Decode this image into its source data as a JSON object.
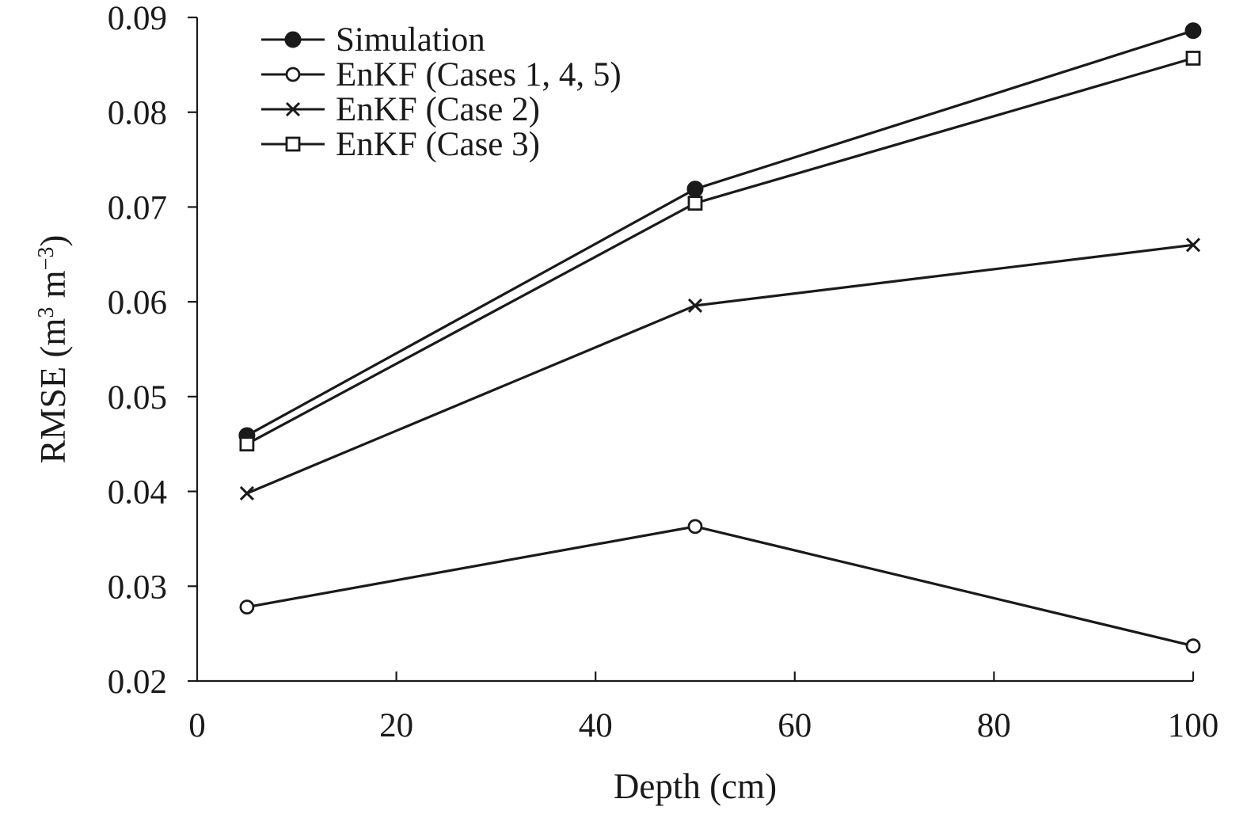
{
  "chart_data": {
    "type": "line",
    "title": "",
    "xlabel": "Depth (cm)",
    "ylabel": {
      "prefix": "RMSE (m",
      "sup1": "3",
      "middle": " m",
      "sup2": "−3",
      "suffix": ")"
    },
    "xlim": [
      0,
      100
    ],
    "ylim": [
      0.02,
      0.09
    ],
    "xticks": [
      {
        "value": 0,
        "label": "0"
      },
      {
        "value": 20,
        "label": "20"
      },
      {
        "value": 40,
        "label": "40"
      },
      {
        "value": 60,
        "label": "60"
      },
      {
        "value": 80,
        "label": "80"
      },
      {
        "value": 100,
        "label": "100"
      }
    ],
    "yticks": [
      {
        "value": 0.02,
        "label": "0.02"
      },
      {
        "value": 0.03,
        "label": "0.03"
      },
      {
        "value": 0.04,
        "label": "0.04"
      },
      {
        "value": 0.05,
        "label": "0.05"
      },
      {
        "value": 0.06,
        "label": "0.06"
      },
      {
        "value": 0.07,
        "label": "0.07"
      },
      {
        "value": 0.08,
        "label": "0.08"
      },
      {
        "value": 0.09,
        "label": "0.09"
      }
    ],
    "grid": false,
    "legend_position": "top-left",
    "x": [
      5,
      50,
      100
    ],
    "series": [
      {
        "name": "Simulation",
        "marker": "filled-circle",
        "values": [
          0.0459,
          0.0719,
          0.0886
        ]
      },
      {
        "name": "EnKF (Cases 1, 4, 5)",
        "marker": "open-circle",
        "values": [
          0.0278,
          0.0363,
          0.0237
        ]
      },
      {
        "name": "EnKF (Case 2)",
        "marker": "cross",
        "values": [
          0.0398,
          0.0596,
          0.066
        ]
      },
      {
        "name": "EnKF (Case 3)",
        "marker": "open-square",
        "values": [
          0.045,
          0.0704,
          0.0857
        ]
      }
    ],
    "colors": {
      "ink": "#1a1a1a",
      "background": "#ffffff"
    }
  }
}
